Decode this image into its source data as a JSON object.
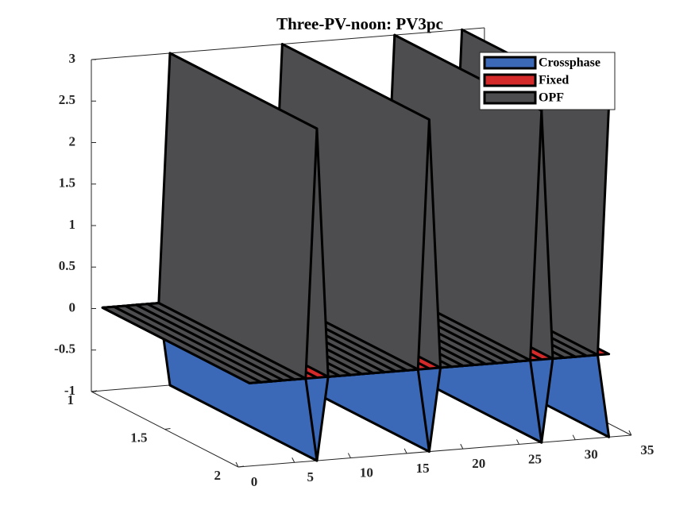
{
  "chart_data": {
    "type": "ribbon3d",
    "title": "Three-PV-noon: PV3pc",
    "x": [
      1,
      2,
      3,
      4,
      5,
      6,
      7,
      8,
      9,
      10,
      11,
      12,
      13,
      14,
      15,
      16,
      17,
      18,
      19,
      20,
      21,
      22,
      23,
      24,
      25,
      26,
      27,
      28,
      29,
      30,
      31,
      32,
      33
    ],
    "series": [
      {
        "name": "Crossphase",
        "color": "#3b69b8",
        "values": [
          0,
          0,
          0,
          0,
          0,
          0,
          -1,
          0,
          0,
          0,
          0,
          0,
          0,
          0,
          0,
          0,
          -1,
          0,
          0,
          0,
          0,
          0,
          0,
          0,
          0,
          0,
          -1,
          0,
          0,
          0,
          0,
          0,
          -1
        ]
      },
      {
        "name": "Fixed",
        "color": "#d42a2a",
        "values": [
          0,
          0,
          0,
          0,
          0,
          0,
          0,
          0,
          0,
          0,
          0,
          0,
          0,
          0,
          0,
          0,
          0,
          0,
          0,
          0,
          0,
          0,
          0,
          0,
          0,
          0,
          0,
          0,
          0,
          0,
          0,
          0,
          0
        ]
      },
      {
        "name": "OPF",
        "color": "#4d4c4e",
        "values": [
          0,
          0,
          0,
          0,
          0,
          0,
          3,
          0,
          0,
          0,
          0,
          0,
          0,
          0,
          0,
          0,
          3,
          0,
          0,
          0,
          0,
          0,
          0,
          0,
          0,
          0,
          3,
          0,
          0,
          0,
          0,
          0,
          3
        ]
      }
    ],
    "xlim": [
      0,
      35
    ],
    "xticks": [
      0,
      5,
      10,
      15,
      20,
      25,
      30,
      35
    ],
    "ylim": [
      1,
      2
    ],
    "yticks": [
      1,
      1.5,
      2
    ],
    "zlim": [
      -1,
      3
    ],
    "zticks": [
      -1,
      -0.5,
      0,
      0.5,
      1,
      1.5,
      2,
      2.5,
      3
    ],
    "legend": "northeast"
  }
}
